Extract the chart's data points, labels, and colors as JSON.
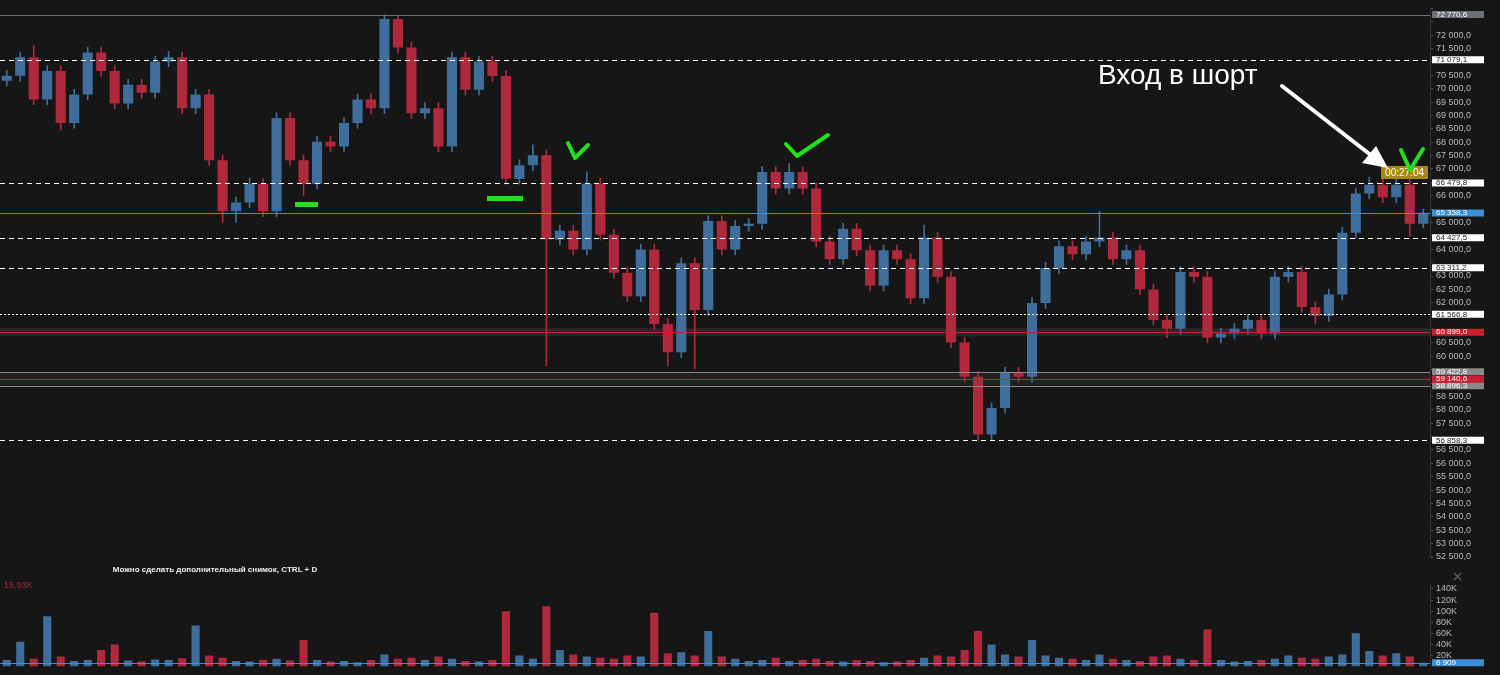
{
  "chart_data": [
    {
      "type": "candlestick",
      "tick_labels": "y",
      "grid": false,
      "categories": [
        null,
        null,
        null,
        null,
        null,
        null,
        null,
        null,
        null,
        null,
        null,
        null,
        null,
        null,
        null,
        null,
        null,
        null,
        null,
        null,
        null,
        null,
        null,
        null,
        null,
        null,
        null,
        null,
        null,
        null,
        null,
        null,
        null,
        null,
        null,
        null,
        null,
        null,
        null,
        null,
        null,
        null,
        null,
        null,
        null,
        null,
        null,
        null,
        null,
        null,
        null,
        null,
        null,
        null,
        null,
        null,
        null,
        null,
        null,
        null,
        null,
        null,
        null,
        null,
        null,
        null,
        null,
        null,
        null,
        null,
        null,
        null,
        null,
        null,
        null,
        null,
        null,
        null,
        null,
        null,
        null,
        null,
        null,
        null,
        null,
        null,
        null,
        null,
        null,
        null,
        null,
        null,
        null,
        null,
        null,
        null,
        null,
        null,
        null,
        null,
        null,
        null,
        null,
        null,
        null,
        null
      ],
      "ohlc": [
        [
          70300,
          70680,
          70100,
          70480
        ],
        [
          70480,
          71370,
          70280,
          71170
        ],
        [
          71170,
          71600,
          69400,
          69600
        ],
        [
          69600,
          70860,
          69400,
          70660
        ],
        [
          70660,
          70860,
          68460,
          68720
        ],
        [
          68720,
          69980,
          68520,
          69780
        ],
        [
          69780,
          71550,
          69580,
          71350
        ],
        [
          71350,
          71550,
          70460,
          70660
        ],
        [
          70660,
          70860,
          69250,
          69450
        ],
        [
          69450,
          70350,
          69250,
          70150
        ],
        [
          70150,
          70350,
          69650,
          69850
        ],
        [
          69850,
          71220,
          69650,
          71020
        ],
        [
          71020,
          71400,
          70820,
          71170
        ],
        [
          71170,
          71370,
          69070,
          69270
        ],
        [
          69270,
          69980,
          69070,
          69780
        ],
        [
          69780,
          69980,
          67130,
          67330
        ],
        [
          67330,
          67530,
          65000,
          65420
        ],
        [
          65420,
          65950,
          65000,
          65750
        ],
        [
          65750,
          66650,
          65550,
          66450
        ],
        [
          66450,
          66650,
          65220,
          65420
        ],
        [
          65420,
          69100,
          65220,
          68900
        ],
        [
          68900,
          69100,
          67130,
          67330
        ],
        [
          67330,
          67530,
          66010,
          66450
        ],
        [
          66450,
          68220,
          66250,
          68020
        ],
        [
          68020,
          68220,
          67640,
          67840
        ],
        [
          67840,
          68920,
          67640,
          68720
        ],
        [
          68720,
          69800,
          68520,
          69600
        ],
        [
          69600,
          69800,
          69070,
          69270
        ],
        [
          69270,
          72770,
          69070,
          72600
        ],
        [
          72600,
          72700,
          71340,
          71540
        ],
        [
          71540,
          71740,
          68880,
          69080
        ],
        [
          69080,
          69470,
          68880,
          69270
        ],
        [
          69270,
          69470,
          67640,
          67840
        ],
        [
          67840,
          71370,
          67640,
          71170
        ],
        [
          71170,
          71370,
          69760,
          69960
        ],
        [
          69960,
          71220,
          69760,
          71020
        ],
        [
          71020,
          71220,
          70270,
          70470
        ],
        [
          70470,
          70670,
          66430,
          66630
        ],
        [
          66630,
          67340,
          66430,
          67140
        ],
        [
          67140,
          67900,
          66940,
          67510
        ],
        [
          67510,
          67710,
          59640,
          64360
        ],
        [
          64360,
          64890,
          64160,
          64690
        ],
        [
          64690,
          64890,
          63790,
          63990
        ],
        [
          63990,
          66890,
          63790,
          66450
        ],
        [
          66450,
          66650,
          64340,
          64540
        ],
        [
          64540,
          64740,
          62920,
          63120
        ],
        [
          63120,
          63320,
          62040,
          62240
        ],
        [
          62240,
          64190,
          62040,
          63990
        ],
        [
          63990,
          64190,
          61010,
          61210
        ],
        [
          61210,
          61410,
          59640,
          60150
        ],
        [
          60150,
          63680,
          59950,
          63480
        ],
        [
          63480,
          63680,
          59530,
          61730
        ],
        [
          61730,
          65260,
          61530,
          65060
        ],
        [
          65060,
          65260,
          63790,
          63990
        ],
        [
          63990,
          65070,
          63790,
          64870
        ],
        [
          64870,
          65150,
          64670,
          64950
        ],
        [
          64950,
          67090,
          64750,
          66890
        ],
        [
          66890,
          67090,
          66070,
          66270
        ],
        [
          66270,
          67200,
          66070,
          66890
        ],
        [
          66890,
          67090,
          66070,
          66270
        ],
        [
          66270,
          66470,
          64090,
          64290
        ],
        [
          64290,
          64490,
          63430,
          63630
        ],
        [
          63630,
          64970,
          63430,
          64770
        ],
        [
          64770,
          64970,
          63760,
          63960
        ],
        [
          63960,
          64160,
          62440,
          62640
        ],
        [
          62640,
          64160,
          62440,
          63960
        ],
        [
          63960,
          64160,
          63430,
          63630
        ],
        [
          63630,
          63830,
          61970,
          62170
        ],
        [
          62170,
          64900,
          61970,
          64440
        ],
        [
          64440,
          64640,
          62770,
          62970
        ],
        [
          62970,
          63170,
          60320,
          60520
        ],
        [
          60520,
          60720,
          59040,
          59240
        ],
        [
          59240,
          59440,
          56860,
          57080
        ],
        [
          57080,
          58270,
          56880,
          58070
        ],
        [
          58070,
          59590,
          57870,
          59390
        ],
        [
          59390,
          59590,
          59040,
          59240
        ],
        [
          59240,
          62190,
          59040,
          61990
        ],
        [
          61990,
          63500,
          61790,
          63300
        ],
        [
          63300,
          64310,
          63100,
          64110
        ],
        [
          64110,
          64310,
          63610,
          63810
        ],
        [
          63810,
          64490,
          63610,
          64290
        ],
        [
          64290,
          65420,
          64090,
          64440
        ],
        [
          64440,
          64640,
          63430,
          63630
        ],
        [
          63630,
          64160,
          63430,
          63960
        ],
        [
          63960,
          64160,
          62300,
          62500
        ],
        [
          62500,
          62700,
          61160,
          61360
        ],
        [
          61360,
          61560,
          60700,
          61030
        ],
        [
          61030,
          63350,
          60830,
          63150
        ],
        [
          63150,
          63350,
          62770,
          62970
        ],
        [
          62970,
          63170,
          60500,
          60700
        ],
        [
          60700,
          61050,
          60500,
          60850
        ],
        [
          60850,
          61230,
          60650,
          61030
        ],
        [
          61030,
          61560,
          60830,
          61360
        ],
        [
          61360,
          61560,
          60650,
          60850
        ],
        [
          60850,
          63170,
          60650,
          62970
        ],
        [
          62970,
          63350,
          62770,
          63150
        ],
        [
          63150,
          63350,
          61640,
          61840
        ],
        [
          61840,
          62040,
          61200,
          61510
        ],
        [
          61510,
          62510,
          61310,
          62310
        ],
        [
          62310,
          64820,
          62110,
          64620
        ],
        [
          64620,
          66280,
          64420,
          66080
        ],
        [
          66080,
          66700,
          65880,
          66410
        ],
        [
          66410,
          66610,
          65740,
          65940
        ],
        [
          65940,
          66650,
          65740,
          66410
        ],
        [
          66410,
          66610,
          64500,
          64950
        ],
        [
          64950,
          65500,
          64800,
          65360
        ]
      ],
      "colors": [
        "#3f6e9c",
        "#3f6e9c",
        "#b0283c",
        "#3f6e9c",
        "#b0283c",
        "#3f6e9c",
        "#3f6e9c",
        "#b0283c",
        "#b0283c",
        "#3f6e9c",
        "#b0283c",
        "#3f6e9c",
        "#3f6e9c",
        "#b0283c",
        "#3f6e9c",
        "#b0283c",
        "#b0283c",
        "#3f6e9c",
        "#3f6e9c",
        "#b0283c",
        "#3f6e9c",
        "#b0283c",
        "#b0283c",
        "#3f6e9c",
        "#b0283c",
        "#3f6e9c",
        "#3f6e9c",
        "#b0283c",
        "#3f6e9c",
        "#b0283c",
        "#b0283c",
        "#3f6e9c",
        "#b0283c",
        "#3f6e9c",
        "#b0283c",
        "#3f6e9c",
        "#b0283c",
        "#b0283c",
        "#3f6e9c",
        "#3f6e9c",
        "#b0283c",
        "#3f6e9c",
        "#b0283c",
        "#3f6e9c",
        "#b0283c",
        "#b0283c",
        "#b0283c",
        "#3f6e9c",
        "#b0283c",
        "#b0283c",
        "#3f6e9c",
        "#b0283c",
        "#3f6e9c",
        "#b0283c",
        "#3f6e9c",
        "#3f6e9c",
        "#3f6e9c",
        "#b0283c",
        "#3f6e9c",
        "#b0283c",
        "#b0283c",
        "#b0283c",
        "#3f6e9c",
        "#b0283c",
        "#b0283c",
        "#3f6e9c",
        "#b0283c",
        "#b0283c",
        "#3f6e9c",
        "#b0283c",
        "#b0283c",
        "#b0283c",
        "#b0283c",
        "#3f6e9c",
        "#3f6e9c",
        "#b0283c",
        "#3f6e9c",
        "#3f6e9c",
        "#3f6e9c",
        "#b0283c",
        "#3f6e9c",
        "#3f6e9c",
        "#b0283c",
        "#3f6e9c",
        "#b0283c",
        "#b0283c",
        "#b0283c",
        "#3f6e9c",
        "#b0283c",
        "#b0283c",
        "#3f6e9c",
        "#3f6e9c",
        "#3f6e9c",
        "#b0283c",
        "#3f6e9c",
        "#3f6e9c",
        "#b0283c",
        "#b0283c",
        "#3f6e9c",
        "#3f6e9c",
        "#3f6e9c",
        "#3f6e9c",
        "#b0283c",
        "#3f6e9c",
        "#b0283c",
        "#3f6e9c"
      ],
      "ylim": [
        52500,
        73000
      ],
      "yticks": [
        {
          "value": 52500,
          "label": "52 500,0"
        },
        {
          "value": 53000,
          "label": "53 000,0"
        },
        {
          "value": 53500,
          "label": "53 500,0"
        },
        {
          "value": 54000,
          "label": "54 000,0"
        },
        {
          "value": 54500,
          "label": "54 500,0"
        },
        {
          "value": 55000,
          "label": "55 000,0"
        },
        {
          "value": 55500,
          "label": "55 500,0"
        },
        {
          "value": 56000,
          "label": "56 000,0"
        },
        {
          "value": 56500,
          "label": "56 500,0"
        },
        {
          "value": 57000,
          "label": null
        },
        {
          "value": 57500,
          "label": "57 500,0"
        },
        {
          "value": 58000,
          "label": "58 000,0"
        },
        {
          "value": 58500,
          "label": "58 500,0"
        },
        {
          "value": 59000,
          "label": null
        },
        {
          "value": 59500,
          "label": null
        },
        {
          "value": 60000,
          "label": "60 000,0"
        },
        {
          "value": 60500,
          "label": "60 500,0"
        },
        {
          "value": 61000,
          "label": null
        },
        {
          "value": 61500,
          "label": null
        },
        {
          "value": 62000,
          "label": "62 000,0"
        },
        {
          "value": 62500,
          "label": "62 500,0"
        },
        {
          "value": 63000,
          "label": "63 000,0"
        },
        {
          "value": 63500,
          "label": null
        },
        {
          "value": 64000,
          "label": "64 000,0"
        },
        {
          "value": 64500,
          "label": null
        },
        {
          "value": 65000,
          "label": "65 000,0"
        },
        {
          "value": 65500,
          "label": null
        },
        {
          "value": 66000,
          "label": "66 000,0"
        },
        {
          "value": 66500,
          "label": null
        },
        {
          "value": 67000,
          "label": "67 000,0"
        },
        {
          "value": 67500,
          "label": "67 500,0"
        },
        {
          "value": 68000,
          "label": "68 000,0"
        },
        {
          "value": 68500,
          "label": "68 500,0"
        },
        {
          "value": 69000,
          "label": "69 000,0"
        },
        {
          "value": 69500,
          "label": "69 500,0"
        },
        {
          "value": 70000,
          "label": "70 000,0"
        },
        {
          "value": 70500,
          "label": "70 500,0"
        },
        {
          "value": 71000,
          "label": null
        },
        {
          "value": 71500,
          "label": "71 500,0"
        },
        {
          "value": 72000,
          "label": "72 000,0"
        },
        {
          "value": 72500,
          "label": null
        },
        {
          "value": 73000,
          "label": null
        }
      ],
      "bands": [
        {
          "axis": "y",
          "from": 60750,
          "to": 61050,
          "color": "#3a3a3a"
        },
        {
          "axis": "y",
          "from": 58896.3,
          "to": 59422.8,
          "color": "#2c2c2c"
        }
      ],
      "ref_lines": [
        {
          "axis": "y",
          "value": 72770.6,
          "label": "72 770,6",
          "color": "#6b7078",
          "line_style": "solid"
        },
        {
          "axis": "y",
          "value": 71079.1,
          "label": "71 079,1",
          "color": "#ffffff",
          "line_style": "dashed"
        },
        {
          "axis": "y",
          "value": 66479.8,
          "label": "66 479,8",
          "color": "#ffffff",
          "line_style": "dashed"
        },
        {
          "axis": "y",
          "value": 65358.3,
          "label": "65 358,3",
          "color": "#3a8fd6",
          "line_style": "solid"
        },
        {
          "axis": "y",
          "value": 64427.5,
          "label": "64 427,5",
          "color": "#ffffff",
          "line_style": "dashed"
        },
        {
          "axis": "y",
          "value": 63311.2,
          "label": "63 311,2",
          "color": "#ffffff",
          "line_style": "dashed"
        },
        {
          "axis": "y",
          "value": 61566.8,
          "label": "61 566,8",
          "color": "#ffffff",
          "line_style": "dotted"
        },
        {
          "axis": "y",
          "value": 60899.0,
          "label": "60 899,0",
          "color": "#c8202e",
          "line_style": "solid"
        },
        {
          "axis": "y",
          "value": 59422.8,
          "label": "59 422,8",
          "color": "#8a8a8a",
          "line_style": "solid"
        },
        {
          "axis": "y",
          "value": 58896.3,
          "label": "58 896,3",
          "color": "#8a8a8a",
          "line_style": "solid"
        },
        {
          "axis": "y",
          "value": 59140.6,
          "label": "59 140,6",
          "color": "#c8202e",
          "line_style": "solid"
        },
        {
          "axis": "y",
          "value": 56858.3,
          "label": "56 858,3",
          "color": "#ffffff",
          "line_style": "dashed"
        }
      ],
      "annotations": [
        "Вход в шорт",
        "00:27:04",
        "Можно сделать дополнительный снимок, CTRL + D"
      ]
    },
    {
      "type": "bar",
      "tick_labels": "y",
      "categories": [
        null,
        null,
        null,
        null,
        null,
        null,
        null,
        null,
        null,
        null,
        null,
        null,
        null,
        null,
        null,
        null,
        null,
        null,
        null,
        null,
        null,
        null,
        null,
        null,
        null,
        null,
        null,
        null,
        null,
        null,
        null,
        null,
        null,
        null,
        null,
        null,
        null,
        null,
        null,
        null,
        null,
        null,
        null,
        null,
        null,
        null,
        null,
        null,
        null,
        null,
        null,
        null,
        null,
        null,
        null,
        null,
        null,
        null,
        null,
        null,
        null,
        null,
        null,
        null,
        null,
        null,
        null,
        null,
        null,
        null,
        null,
        null,
        null,
        null,
        null,
        null,
        null,
        null,
        null,
        null,
        null,
        null,
        null,
        null,
        null,
        null,
        null,
        null,
        null,
        null,
        null,
        null,
        null,
        null,
        null,
        null,
        null,
        null,
        null,
        null,
        null,
        null,
        null,
        null,
        null,
        null
      ],
      "values": [
        12000,
        45000,
        14000,
        91000,
        18000,
        10000,
        12000,
        30000,
        40000,
        11000,
        9000,
        13000,
        12000,
        15000,
        74000,
        20000,
        16000,
        10000,
        9000,
        12000,
        14000,
        11000,
        48000,
        12000,
        9000,
        10000,
        8000,
        12000,
        22000,
        14000,
        16000,
        12000,
        18000,
        14000,
        10000,
        9000,
        12000,
        100000,
        20000,
        14000,
        109000,
        30000,
        22000,
        18000,
        16000,
        14000,
        20000,
        18000,
        97000,
        24000,
        26000,
        20000,
        64000,
        18000,
        14000,
        10000,
        12000,
        16000,
        10000,
        12000,
        14000,
        10000,
        9000,
        12000,
        10000,
        8000,
        9000,
        12000,
        16000,
        20000,
        18000,
        30000,
        64000,
        40000,
        22000,
        18000,
        48000,
        20000,
        16000,
        14000,
        12000,
        22000,
        14000,
        12000,
        10000,
        18000,
        20000,
        14000,
        12000,
        67000,
        12000,
        9000,
        10000,
        12000,
        14000,
        20000,
        16000,
        14000,
        18000,
        22000,
        60000,
        28000,
        20000,
        24000,
        18000,
        6909
      ],
      "colors": [
        "#3f6e9c",
        "#3f6e9c",
        "#b0283c",
        "#3f6e9c",
        "#b0283c",
        "#3f6e9c",
        "#3f6e9c",
        "#b0283c",
        "#b0283c",
        "#3f6e9c",
        "#b0283c",
        "#3f6e9c",
        "#3f6e9c",
        "#b0283c",
        "#3f6e9c",
        "#b0283c",
        "#b0283c",
        "#3f6e9c",
        "#3f6e9c",
        "#b0283c",
        "#3f6e9c",
        "#b0283c",
        "#b0283c",
        "#3f6e9c",
        "#b0283c",
        "#3f6e9c",
        "#3f6e9c",
        "#b0283c",
        "#3f6e9c",
        "#b0283c",
        "#b0283c",
        "#3f6e9c",
        "#b0283c",
        "#3f6e9c",
        "#b0283c",
        "#3f6e9c",
        "#b0283c",
        "#b0283c",
        "#3f6e9c",
        "#3f6e9c",
        "#b0283c",
        "#3f6e9c",
        "#b0283c",
        "#3f6e9c",
        "#b0283c",
        "#b0283c",
        "#b0283c",
        "#3f6e9c",
        "#b0283c",
        "#b0283c",
        "#3f6e9c",
        "#b0283c",
        "#3f6e9c",
        "#b0283c",
        "#3f6e9c",
        "#3f6e9c",
        "#3f6e9c",
        "#b0283c",
        "#3f6e9c",
        "#b0283c",
        "#b0283c",
        "#b0283c",
        "#3f6e9c",
        "#b0283c",
        "#b0283c",
        "#3f6e9c",
        "#b0283c",
        "#b0283c",
        "#3f6e9c",
        "#b0283c",
        "#b0283c",
        "#b0283c",
        "#b0283c",
        "#3f6e9c",
        "#3f6e9c",
        "#b0283c",
        "#3f6e9c",
        "#3f6e9c",
        "#3f6e9c",
        "#b0283c",
        "#3f6e9c",
        "#3f6e9c",
        "#b0283c",
        "#3f6e9c",
        "#b0283c",
        "#b0283c",
        "#b0283c",
        "#3f6e9c",
        "#b0283c",
        "#b0283c",
        "#3f6e9c",
        "#3f6e9c",
        "#3f6e9c",
        "#b0283c",
        "#3f6e9c",
        "#3f6e9c",
        "#b0283c",
        "#b0283c",
        "#3f6e9c",
        "#3f6e9c",
        "#3f6e9c",
        "#3f6e9c",
        "#b0283c",
        "#3f6e9c",
        "#b0283c",
        "#3f6e9c"
      ],
      "ylim": [
        0,
        150000
      ],
      "yticks": [
        {
          "value": 20000,
          "label": "20K"
        },
        {
          "value": 40000,
          "label": "40K"
        },
        {
          "value": 60000,
          "label": "60K"
        },
        {
          "value": 80000,
          "label": "80K"
        },
        {
          "value": 100000,
          "label": "100K"
        },
        {
          "value": 120000,
          "label": "120K"
        },
        {
          "value": 140000,
          "label": "140K"
        }
      ],
      "ref_lines": [
        {
          "axis": "y",
          "value": 6909,
          "label": "6 909",
          "color": "#3a8fd6",
          "line_style": "solid"
        }
      ],
      "annotations": [
        "16,93K"
      ]
    }
  ]
}
